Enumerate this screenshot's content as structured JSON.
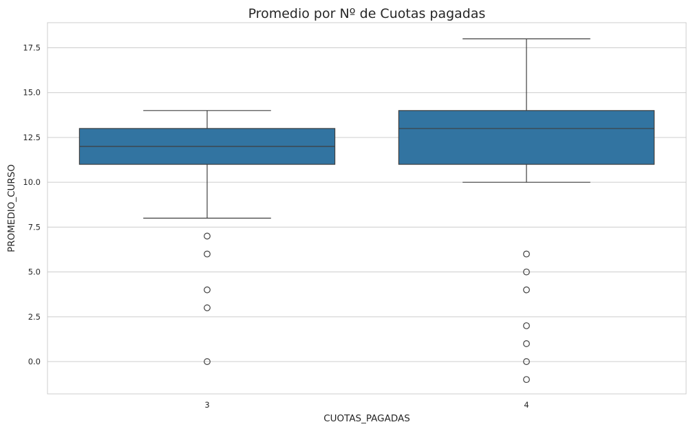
{
  "chart_data": {
    "type": "box",
    "title": "Promedio por Nº de Cuotas pagadas",
    "xlabel": "CUOTAS_PAGADAS",
    "ylabel": "PROMEDIO_CURSO",
    "ylim": [
      -1.8,
      18.9
    ],
    "yticks": [
      "0.0",
      "2.5",
      "5.0",
      "7.5",
      "10.0",
      "12.5",
      "15.0",
      "17.5"
    ],
    "grid": "horizontal",
    "box_color": "#3274a1",
    "categories": [
      "3",
      "4"
    ],
    "boxes": [
      {
        "category": "3",
        "whisker_low": 8,
        "q1": 11,
        "median": 12,
        "q3": 13,
        "whisker_high": 14,
        "outliers": [
          7,
          6,
          4,
          3,
          0
        ]
      },
      {
        "category": "4",
        "whisker_low": 10,
        "q1": 11,
        "median": 13,
        "q3": 14,
        "whisker_high": 18,
        "outliers": [
          6,
          5,
          4,
          2,
          1,
          0,
          -1
        ]
      }
    ]
  }
}
